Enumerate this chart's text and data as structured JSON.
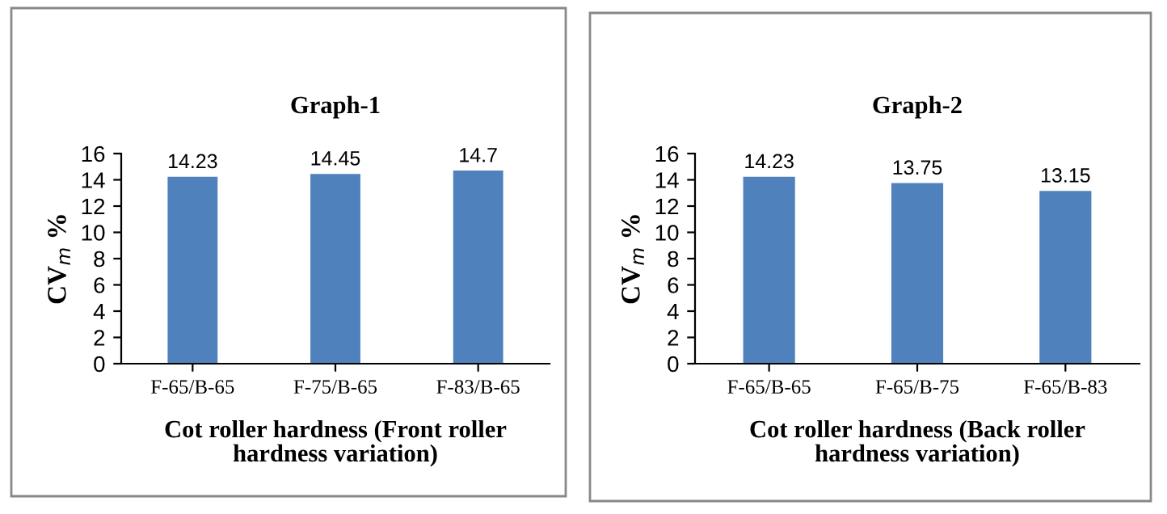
{
  "chart_data": [
    {
      "type": "bar",
      "title": "Graph-1",
      "xlabel": "Cot roller hardness (Front roller\nhardness variation)",
      "ylabel": "CV$_{m}$ %",
      "categories": [
        "F-65/B-65",
        "F-75/B-65",
        "F-83/B-65"
      ],
      "values": [
        14.23,
        14.45,
        14.7
      ],
      "color": "#4f81bd",
      "ylim": [
        0,
        16
      ],
      "yticks": [
        0,
        2,
        4,
        6,
        8,
        10,
        12,
        14,
        16
      ],
      "data_labels": true,
      "grid": false,
      "legend": false
    },
    {
      "type": "bar",
      "title": "Graph-2",
      "xlabel": "Cot roller hardness (Back roller\nhardness variation)",
      "ylabel": "CV$_{m}$ %",
      "categories": [
        "F-65/B-65",
        "F-65/B-75",
        "F-65/B-83"
      ],
      "values": [
        14.23,
        13.75,
        13.15
      ],
      "color": "#4f81bd",
      "ylim": [
        0,
        16
      ],
      "yticks": [
        0,
        2,
        4,
        6,
        8,
        10,
        12,
        14,
        16
      ],
      "data_labels": true,
      "grid": false,
      "legend": false
    }
  ]
}
